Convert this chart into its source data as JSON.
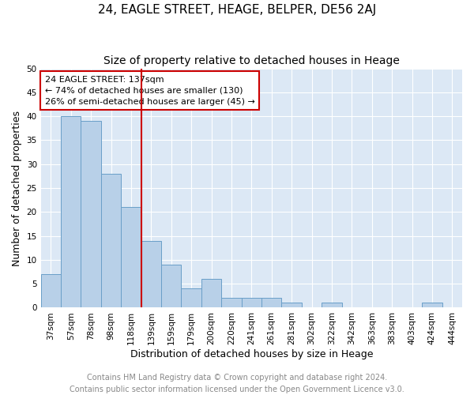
{
  "title": "24, EAGLE STREET, HEAGE, BELPER, DE56 2AJ",
  "subtitle": "Size of property relative to detached houses in Heage",
  "xlabel": "Distribution of detached houses by size in Heage",
  "ylabel": "Number of detached properties",
  "categories": [
    "37sqm",
    "57sqm",
    "78sqm",
    "98sqm",
    "118sqm",
    "139sqm",
    "159sqm",
    "179sqm",
    "200sqm",
    "220sqm",
    "241sqm",
    "261sqm",
    "281sqm",
    "302sqm",
    "322sqm",
    "342sqm",
    "363sqm",
    "383sqm",
    "403sqm",
    "424sqm",
    "444sqm"
  ],
  "values": [
    7,
    40,
    39,
    28,
    21,
    14,
    9,
    4,
    6,
    2,
    2,
    2,
    1,
    0,
    1,
    0,
    0,
    0,
    0,
    1,
    0
  ],
  "bar_color": "#b8d0e8",
  "bar_edge_color": "#6a9fc8",
  "vline_index": 5,
  "vline_color": "#cc0000",
  "annotation_line1": "24 EAGLE STREET: 137sqm",
  "annotation_line2": "← 74% of detached houses are smaller (130)",
  "annotation_line3": "26% of semi-detached houses are larger (45) →",
  "annotation_box_color": "#ffffff",
  "annotation_box_edge": "#cc0000",
  "ylim": [
    0,
    50
  ],
  "yticks": [
    0,
    5,
    10,
    15,
    20,
    25,
    30,
    35,
    40,
    45,
    50
  ],
  "background_color": "#dce8f5",
  "footer_line1": "Contains HM Land Registry data © Crown copyright and database right 2024.",
  "footer_line2": "Contains public sector information licensed under the Open Government Licence v3.0.",
  "title_fontsize": 11,
  "subtitle_fontsize": 10,
  "xlabel_fontsize": 9,
  "ylabel_fontsize": 9,
  "tick_fontsize": 7.5,
  "annotation_fontsize": 8,
  "footer_fontsize": 7
}
